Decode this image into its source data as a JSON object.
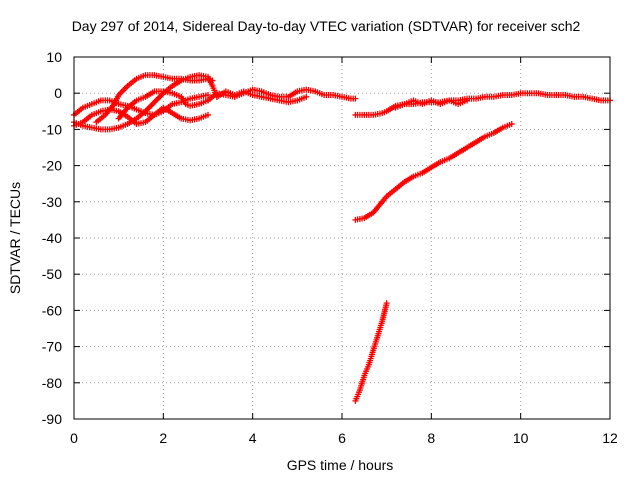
{
  "chart_data": {
    "type": "scatter",
    "title": "Day 297 of 2014, Sidereal Day-to-day VTEC variation (SDTVAR) for receiver sch2",
    "xlabel": "GPS time / hours",
    "ylabel": "SDTVAR / TECUs",
    "xlim": [
      0,
      12
    ],
    "ylim": [
      -90,
      10
    ],
    "xticks": [
      0,
      2,
      4,
      6,
      8,
      10,
      12
    ],
    "yticks": [
      10,
      0,
      -10,
      -20,
      -30,
      -40,
      -50,
      -60,
      -70,
      -80,
      -90
    ],
    "grid": true,
    "legend": "none",
    "marker": "plus",
    "color": "#ff0000",
    "series": [
      {
        "x": [
          0.0,
          0.2,
          0.4,
          0.6,
          0.8,
          1.0,
          1.2,
          1.4,
          1.6,
          1.8,
          2.0,
          2.2,
          2.4,
          2.6,
          2.8,
          3.0,
          3.1,
          3.2
        ],
        "y": [
          -8,
          -9,
          -9.5,
          -10,
          -10,
          -9.5,
          -8.5,
          -7,
          -5,
          -2.5,
          0,
          2,
          3.5,
          4.5,
          5,
          4.5,
          2,
          -1
        ]
      },
      {
        "x": [
          0.0,
          0.2,
          0.4,
          0.6,
          0.8,
          1.0,
          1.2,
          1.4,
          1.6,
          1.8,
          2.0,
          2.2,
          2.4,
          2.6,
          2.8,
          3.0
        ],
        "y": [
          -6,
          -4,
          -3,
          -2,
          -2,
          -3,
          -3.5,
          -4.5,
          -5.5,
          -6,
          -5,
          -3,
          -2.5,
          -1.5,
          -1,
          -0.5
        ]
      },
      {
        "x": [
          0.0,
          0.2,
          0.4,
          0.6,
          0.8,
          1.0,
          1.2,
          1.4,
          1.6,
          1.8,
          2.0,
          2.2,
          2.4,
          2.6,
          2.8,
          3.0
        ],
        "y": [
          -9,
          -8,
          -6,
          -5,
          -4.5,
          -5,
          -6.5,
          -8.5,
          -8,
          -6,
          -4,
          -5.5,
          -7,
          -7.5,
          -7,
          -6
        ]
      },
      {
        "x": [
          0.5,
          0.7,
          0.9,
          1.0,
          1.2,
          1.4,
          1.6,
          1.8,
          2.0,
          2.2,
          2.4,
          2.6,
          2.8,
          3.0,
          3.1
        ],
        "y": [
          -8,
          -6,
          -3,
          -0.5,
          2,
          4,
          5,
          5,
          4.5,
          4,
          4,
          3.5,
          3.5,
          4,
          3.5
        ]
      },
      {
        "x": [
          1.0,
          1.2,
          1.4,
          1.6,
          1.8,
          2.0,
          2.2,
          2.4,
          2.5,
          2.6,
          2.8,
          3.0
        ],
        "y": [
          -7,
          -4,
          -2,
          -1,
          0.5,
          0.5,
          0,
          -1,
          -3,
          -3.5,
          -3,
          -2
        ]
      },
      {
        "x": [
          3.0,
          3.2,
          3.4,
          3.6,
          3.8,
          4.0,
          4.2,
          4.4,
          4.6,
          4.8,
          5.0,
          5.2,
          5.4,
          5.6,
          5.8,
          6.0,
          6.2,
          6.3
        ],
        "y": [
          -2,
          0,
          -0.5,
          -1,
          0,
          1,
          0.5,
          -0.5,
          -1,
          -1,
          0.5,
          1,
          0.5,
          -0.5,
          -0.5,
          -1,
          -1.5,
          -1.5
        ]
      },
      {
        "x": [
          3.2,
          3.4,
          3.6,
          3.8,
          4.0,
          4.2,
          4.4,
          4.6,
          4.8,
          5.0,
          5.2
        ],
        "y": [
          -1,
          0.5,
          -0.5,
          0.5,
          -0.5,
          -1,
          -1.5,
          -2,
          -2.5,
          -2,
          -1
        ]
      },
      {
        "x": [
          6.3,
          6.5,
          6.7,
          6.9,
          7.0,
          7.2,
          7.4,
          7.6,
          7.8,
          8.0,
          8.2,
          8.4,
          8.6,
          8.8,
          9.0,
          9.2,
          9.4,
          9.6,
          9.8,
          10.0,
          10.2,
          10.4,
          10.6,
          10.8,
          11.0,
          11.2,
          11.4,
          11.6,
          11.8,
          12.0
        ],
        "y": [
          -6,
          -6,
          -6,
          -5.5,
          -5,
          -3.5,
          -3,
          -3,
          -2.5,
          -2.5,
          -2.5,
          -2,
          -2,
          -1.5,
          -1.5,
          -1,
          -1,
          -0.5,
          -0.5,
          0,
          0,
          0,
          -0.5,
          -0.5,
          -0.5,
          -1,
          -1,
          -1.5,
          -2,
          -2
        ]
      },
      {
        "x": [
          7.2,
          7.4,
          7.6,
          7.8,
          8.0,
          8.2,
          8.4,
          8.6,
          8.8
        ],
        "y": [
          -4,
          -3,
          -2,
          -3,
          -2,
          -3,
          -2,
          -3,
          -2
        ]
      },
      {
        "x": [
          6.3,
          6.5,
          6.7,
          6.9,
          7.0,
          7.2,
          7.4,
          7.6,
          7.8,
          8.0,
          8.2,
          8.4,
          8.6,
          8.8,
          9.0,
          9.2,
          9.4,
          9.6,
          9.8
        ],
        "y": [
          -35,
          -34.5,
          -33,
          -30,
          -28.5,
          -26.5,
          -24.5,
          -23,
          -22,
          -20.5,
          -19,
          -18,
          -16.5,
          -15,
          -13.5,
          -12,
          -11,
          -9.5,
          -8.5
        ]
      },
      {
        "x": [
          6.3,
          6.4,
          6.5,
          6.6,
          6.7,
          6.8,
          6.9,
          7.0
        ],
        "y": [
          -85,
          -82,
          -78,
          -75,
          -71,
          -67,
          -63,
          -58
        ]
      }
    ]
  }
}
